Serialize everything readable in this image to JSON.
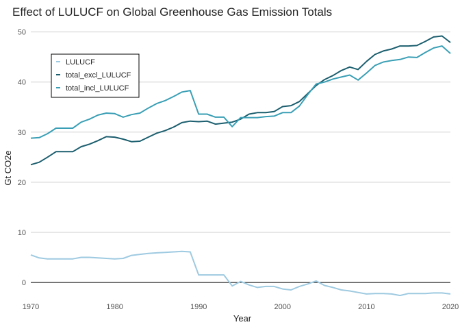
{
  "chart_data": {
    "type": "line",
    "title": "Effect of LULUCF on Global Greenhouse Gas Emission Totals",
    "xlabel": "Year",
    "ylabel": "Gt CO2e",
    "xlim": [
      1970,
      2020
    ],
    "ylim": [
      -3,
      52
    ],
    "x_ticks": [
      1970,
      1980,
      1990,
      2000,
      2010,
      2020
    ],
    "y_ticks": [
      0,
      10,
      20,
      30,
      40,
      50
    ],
    "grid": "horizontal",
    "zero_line": true,
    "legend_position": "top-left",
    "x": [
      1970,
      1971,
      1972,
      1973,
      1974,
      1975,
      1976,
      1977,
      1978,
      1979,
      1980,
      1981,
      1982,
      1983,
      1984,
      1985,
      1986,
      1987,
      1988,
      1989,
      1990,
      1991,
      1992,
      1993,
      1994,
      1995,
      1996,
      1997,
      1998,
      1999,
      2000,
      2001,
      2002,
      2003,
      2004,
      2005,
      2006,
      2007,
      2008,
      2009,
      2010,
      2011,
      2012,
      2013,
      2014,
      2015,
      2016,
      2017,
      2018,
      2019,
      2020
    ],
    "series": [
      {
        "name": "LULUCF",
        "color": "#9ecae1",
        "values": [
          5.5,
          4.9,
          4.7,
          4.7,
          4.7,
          4.7,
          5.0,
          5.0,
          4.9,
          4.8,
          4.7,
          4.8,
          5.4,
          5.6,
          5.8,
          5.9,
          6.0,
          6.1,
          6.2,
          6.1,
          1.5,
          1.5,
          1.5,
          1.5,
          -0.7,
          0.2,
          -0.5,
          -1.0,
          -0.8,
          -0.8,
          -1.3,
          -1.5,
          -0.8,
          -0.3,
          0.3,
          -0.6,
          -1.0,
          -1.5,
          -1.7,
          -2.0,
          -2.3,
          -2.2,
          -2.2,
          -2.3,
          -2.6,
          -2.2,
          -2.2,
          -2.2,
          -2.1,
          -2.1,
          -2.3
        ]
      },
      {
        "name": "total_excl_LULUCF",
        "color": "#1b5e6e",
        "values": [
          23.5,
          24.0,
          25.0,
          26.1,
          26.1,
          26.1,
          27.1,
          27.6,
          28.3,
          29.1,
          29.0,
          28.6,
          28.1,
          28.2,
          29.0,
          29.8,
          30.3,
          31.0,
          31.9,
          32.2,
          32.1,
          32.2,
          31.6,
          31.8,
          32.0,
          32.6,
          33.6,
          33.9,
          33.9,
          34.1,
          35.1,
          35.3,
          36.1,
          37.7,
          39.3,
          40.5,
          41.3,
          42.3,
          43.0,
          42.5,
          44.1,
          45.5,
          46.2,
          46.6,
          47.2,
          47.2,
          47.3,
          48.1,
          49.0,
          49.2,
          47.9
        ]
      },
      {
        "name": "total_incl_LULUCF",
        "color": "#3a9fb5",
        "values": [
          28.8,
          28.9,
          29.7,
          30.8,
          30.8,
          30.8,
          32.0,
          32.6,
          33.4,
          33.8,
          33.7,
          33.0,
          33.5,
          33.8,
          34.8,
          35.7,
          36.3,
          37.1,
          38.0,
          38.3,
          33.6,
          33.6,
          33.0,
          33.0,
          31.1,
          32.9,
          32.9,
          32.9,
          33.1,
          33.2,
          33.9,
          33.9,
          35.2,
          37.5,
          39.6,
          40.0,
          40.6,
          41.0,
          41.4,
          40.4,
          41.8,
          43.3,
          44.0,
          44.3,
          44.5,
          45.0,
          44.9,
          45.9,
          46.8,
          47.2,
          45.7
        ]
      }
    ]
  }
}
